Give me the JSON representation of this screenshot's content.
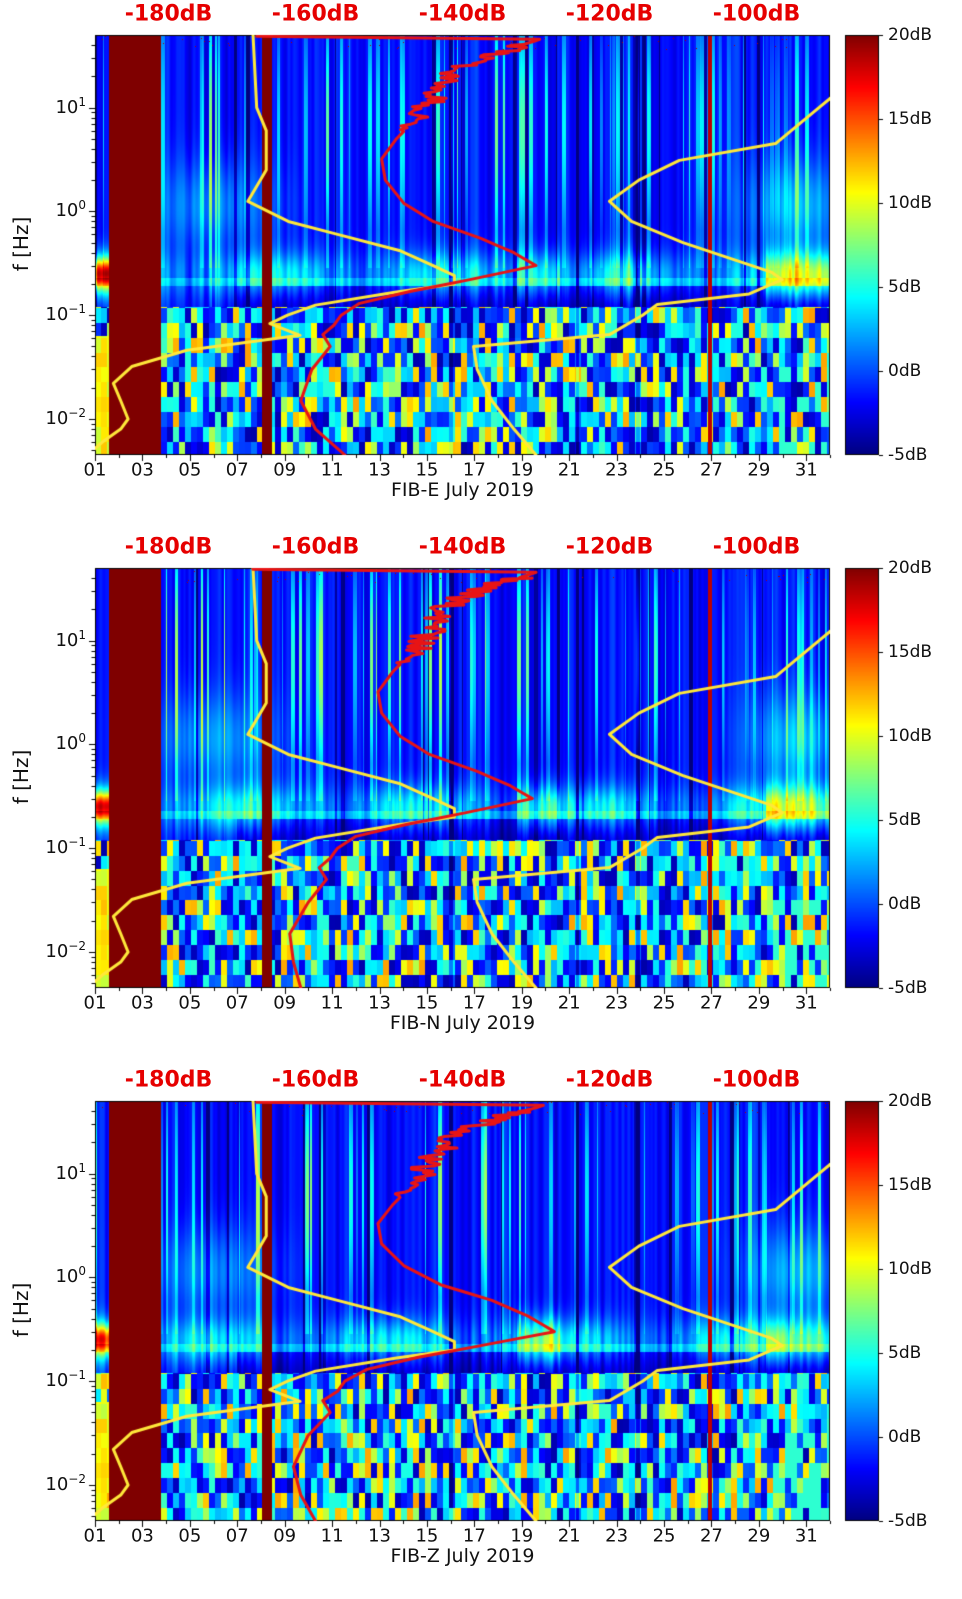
{
  "chart_data": {
    "type": "heatmap",
    "panels": [
      {
        "label": "FIB-E July 2019",
        "noise_seed": 7,
        "station_spectrum_db": [
          [
            0.0045,
            -156
          ],
          [
            0.008,
            -160
          ],
          [
            0.015,
            -162
          ],
          [
            0.03,
            -160.5
          ],
          [
            0.05,
            -158
          ],
          [
            0.065,
            -159
          ],
          [
            0.08,
            -157.5
          ],
          [
            0.1,
            -156.5
          ],
          [
            0.13,
            -154
          ],
          [
            0.17,
            -147
          ],
          [
            0.22,
            -139
          ],
          [
            0.3,
            -130
          ],
          [
            0.4,
            -133
          ],
          [
            0.55,
            -137.5
          ],
          [
            0.8,
            -144
          ],
          [
            1.2,
            -148
          ],
          [
            2,
            -150.5
          ],
          [
            3.2,
            -151
          ],
          [
            5,
            -149
          ],
          [
            7.5,
            -146.5
          ],
          [
            11,
            -144.5
          ],
          [
            16,
            -143
          ],
          [
            22,
            -141.5
          ],
          [
            30,
            -137.5
          ],
          [
            38,
            -133
          ],
          [
            43,
            -130.5
          ],
          [
            45.5,
            -129.5
          ],
          [
            48.5,
            -168
          ]
        ]
      },
      {
        "label": "FIB-N July 2019",
        "noise_seed": 8,
        "station_spectrum_db": [
          [
            0.0045,
            -162
          ],
          [
            0.008,
            -163
          ],
          [
            0.015,
            -163.5
          ],
          [
            0.03,
            -161
          ],
          [
            0.05,
            -158.5
          ],
          [
            0.065,
            -159.5
          ],
          [
            0.08,
            -158
          ],
          [
            0.1,
            -157
          ],
          [
            0.13,
            -154.5
          ],
          [
            0.17,
            -147.5
          ],
          [
            0.22,
            -139.5
          ],
          [
            0.3,
            -130.5
          ],
          [
            0.4,
            -133.5
          ],
          [
            0.55,
            -138
          ],
          [
            0.8,
            -144.5
          ],
          [
            1.2,
            -148.5
          ],
          [
            2,
            -151
          ],
          [
            3.2,
            -151.5
          ],
          [
            5,
            -149.5
          ],
          [
            7.5,
            -147
          ],
          [
            11,
            -145
          ],
          [
            16,
            -143.5
          ],
          [
            22,
            -142
          ],
          [
            30,
            -138
          ],
          [
            38,
            -133.5
          ],
          [
            43,
            -131
          ],
          [
            45.5,
            -130
          ],
          [
            48.5,
            -168.5
          ]
        ]
      },
      {
        "label": "FIB-Z July 2019",
        "noise_seed": 9,
        "station_spectrum_db": [
          [
            0.0045,
            -160
          ],
          [
            0.008,
            -162
          ],
          [
            0.015,
            -163
          ],
          [
            0.03,
            -161
          ],
          [
            0.05,
            -158
          ],
          [
            0.065,
            -159
          ],
          [
            0.08,
            -157
          ],
          [
            0.1,
            -156
          ],
          [
            0.13,
            -153
          ],
          [
            0.17,
            -146
          ],
          [
            0.22,
            -137.5
          ],
          [
            0.3,
            -127.5
          ],
          [
            0.42,
            -131
          ],
          [
            0.6,
            -136
          ],
          [
            0.85,
            -143
          ],
          [
            1.3,
            -148
          ],
          [
            2.1,
            -151
          ],
          [
            3.3,
            -151.5
          ],
          [
            5,
            -149.5
          ],
          [
            7.5,
            -147
          ],
          [
            11,
            -145
          ],
          [
            16,
            -143.5
          ],
          [
            22,
            -141.5
          ],
          [
            30,
            -137.5
          ],
          [
            38,
            -133
          ],
          [
            43,
            -130
          ],
          [
            45.5,
            -129
          ],
          [
            48.5,
            -168
          ]
        ]
      }
    ],
    "x_axis": {
      "tick_labels": [
        "01",
        "03",
        "05",
        "07",
        "09",
        "11",
        "13",
        "15",
        "17",
        "19",
        "21",
        "23",
        "25",
        "27",
        "29",
        "31"
      ],
      "tick_values": [
        1,
        3,
        5,
        7,
        9,
        11,
        13,
        15,
        17,
        19,
        21,
        23,
        25,
        27,
        29,
        31
      ],
      "domain_days": [
        1,
        32
      ]
    },
    "y_axis": {
      "label": "f [Hz]",
      "scale": "log",
      "domain_hz": [
        0.0045,
        50
      ],
      "tick_base": "10",
      "tick_exponents": [
        "1",
        "0",
        "−1",
        "−2"
      ],
      "tick_values": [
        10,
        1,
        0.1,
        0.01
      ]
    },
    "top_axis": {
      "unit": "dB",
      "color": "#e60000",
      "tick_labels": [
        "-180dB",
        "-160dB",
        "-140dB",
        "-120dB",
        "-100dB"
      ],
      "tick_values": [
        -180,
        -160,
        -140,
        -120,
        -100
      ],
      "domain_db": [
        -190,
        -90
      ]
    },
    "colorbar": {
      "tick_labels": [
        "20dB",
        "15dB",
        "10dB",
        "5dB",
        "0dB",
        "-5dB"
      ],
      "tick_values": [
        20,
        15,
        10,
        5,
        0,
        -5
      ],
      "domain_db": [
        -5,
        20
      ],
      "colormap": "jet",
      "position": "right"
    },
    "overlays": {
      "model_color": "#ffe83a",
      "station_color": "#e81414",
      "low_noise_model_db": [
        [
          0.0045,
          -191
        ],
        [
          0.006,
          -189
        ],
        [
          0.008,
          -186.5
        ],
        [
          0.01,
          -185.5
        ],
        [
          0.015,
          -186.5
        ],
        [
          0.022,
          -187.5
        ],
        [
          0.032,
          -185
        ],
        [
          0.046,
          -177.5
        ],
        [
          0.064,
          -162.1
        ],
        [
          0.083,
          -166.2
        ],
        [
          0.1,
          -163.8
        ],
        [
          0.125,
          -160
        ],
        [
          0.167,
          -149
        ],
        [
          0.2,
          -141.1
        ],
        [
          0.24,
          -141.1
        ],
        [
          0.3,
          -144
        ],
        [
          0.42,
          -148.6
        ],
        [
          0.6,
          -157
        ],
        [
          0.8,
          -163.7
        ],
        [
          1.25,
          -169.2
        ],
        [
          2.5,
          -166.7
        ],
        [
          6,
          -166.7
        ],
        [
          10,
          -168
        ],
        [
          50,
          -168.5
        ]
      ],
      "high_noise_model_db": [
        [
          0.0045,
          -130
        ],
        [
          0.008,
          -133
        ],
        [
          0.015,
          -136
        ],
        [
          0.03,
          -138
        ],
        [
          0.05,
          -138.5
        ],
        [
          0.065,
          -120
        ],
        [
          0.1,
          -115.5
        ],
        [
          0.127,
          -113.5
        ],
        [
          0.16,
          -101
        ],
        [
          0.22,
          -96.5
        ],
        [
          0.26,
          -98
        ],
        [
          0.5,
          -110
        ],
        [
          0.8,
          -117
        ],
        [
          1.25,
          -120
        ],
        [
          2,
          -116
        ],
        [
          3.1,
          -110.5
        ],
        [
          4.5,
          -97.4
        ],
        [
          10,
          -91.5
        ],
        [
          16,
          -88
        ]
      ]
    },
    "features": {
      "saturated_bands_days": [
        [
          1.6,
          3.8
        ],
        [
          8.05,
          8.45
        ]
      ],
      "red_vertical_line_day": 26.95,
      "dark_vertical_lines_days": [
        16.02,
        21.35,
        23.9
      ]
    }
  }
}
